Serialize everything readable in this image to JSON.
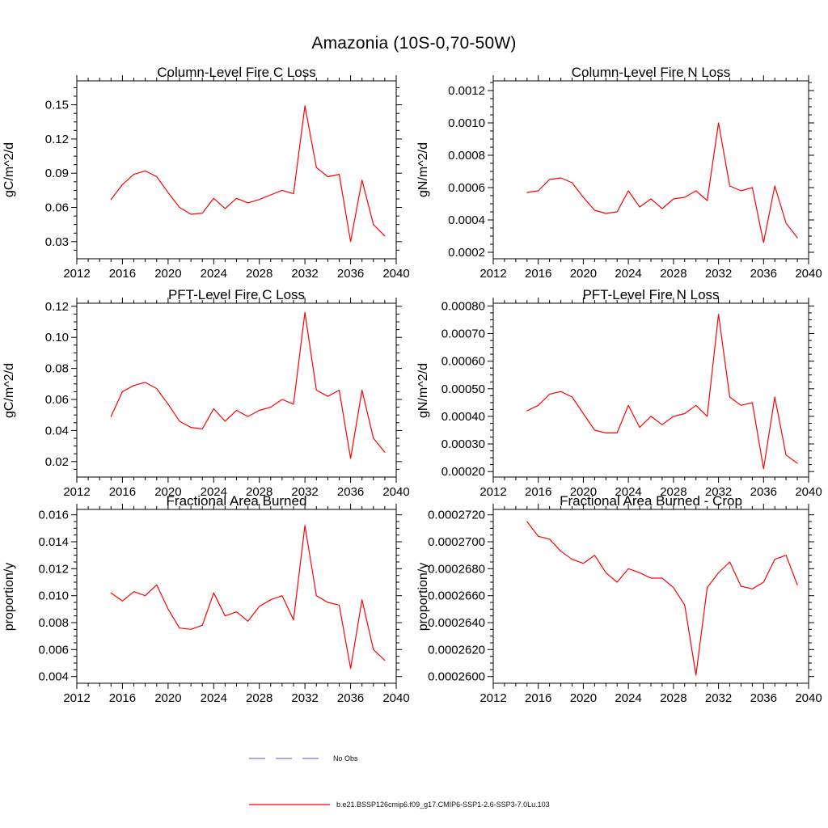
{
  "main_title": "Amazonia (10S-0,70-50W)",
  "legend": {
    "no_obs": {
      "label": "No Obs",
      "color": "#7777c8",
      "style": "dashed"
    },
    "model": {
      "label": "b.e21.BSSP126cmip6.f09_g17.CMIP6-SSP1-2.6-SSP3-7.0Lu.103",
      "color": "#ff0000",
      "style": "solid"
    }
  },
  "chart_data": [
    {
      "type": "line",
      "title": "Column-Level Fire C Loss",
      "ylabel": "gC/m^2/d",
      "xlabel": "",
      "grid": false,
      "xlim": [
        2012,
        2040
      ],
      "ylim": [
        0.015,
        0.171
      ],
      "xticks": [
        2012,
        2016,
        2020,
        2024,
        2028,
        2032,
        2036,
        2040
      ],
      "yticks": [
        0.03,
        0.06,
        0.09,
        0.12,
        0.15
      ],
      "ytick_labels": [
        "0.03",
        "0.06",
        "0.09",
        "0.12",
        "0.15"
      ],
      "x": [
        2015,
        2016,
        2017,
        2018,
        2019,
        2020,
        2021,
        2022,
        2023,
        2024,
        2025,
        2026,
        2027,
        2028,
        2029,
        2030,
        2031,
        2032,
        2033,
        2034,
        2035,
        2036,
        2037,
        2038,
        2039
      ],
      "values": [
        0.067,
        0.08,
        0.089,
        0.092,
        0.087,
        0.073,
        0.06,
        0.054,
        0.055,
        0.068,
        0.059,
        0.068,
        0.064,
        0.067,
        0.071,
        0.075,
        0.072,
        0.149,
        0.095,
        0.087,
        0.089,
        0.03,
        0.084,
        0.045,
        0.035
      ]
    },
    {
      "type": "line",
      "title": "Column-Level Fire N Loss",
      "ylabel": "gN/m^2/d",
      "xlabel": "",
      "grid": false,
      "xlim": [
        2012,
        2040
      ],
      "ylim": [
        0.00016,
        0.00126
      ],
      "xticks": [
        2012,
        2016,
        2020,
        2024,
        2028,
        2032,
        2036,
        2040
      ],
      "yticks": [
        0.0002,
        0.0004,
        0.0006,
        0.0008,
        0.001,
        0.0012
      ],
      "ytick_labels": [
        "0.0002",
        "0.0004",
        "0.0006",
        "0.0008",
        "0.0010",
        "0.0012"
      ],
      "x": [
        2015,
        2016,
        2017,
        2018,
        2019,
        2020,
        2021,
        2022,
        2023,
        2024,
        2025,
        2026,
        2027,
        2028,
        2029,
        2030,
        2031,
        2032,
        2033,
        2034,
        2035,
        2036,
        2037,
        2038,
        2039
      ],
      "values": [
        0.00057,
        0.00058,
        0.00065,
        0.00066,
        0.00063,
        0.00054,
        0.00046,
        0.00044,
        0.00045,
        0.00058,
        0.00048,
        0.00053,
        0.00047,
        0.00053,
        0.00054,
        0.00058,
        0.00052,
        0.001,
        0.00061,
        0.00058,
        0.0006,
        0.00026,
        0.00061,
        0.00038,
        0.00029
      ]
    },
    {
      "type": "line",
      "title": "PFT-Level Fire C Loss",
      "ylabel": "gC/m^2/d",
      "xlabel": "",
      "grid": false,
      "xlim": [
        2012,
        2040
      ],
      "ylim": [
        0.01,
        0.122
      ],
      "xticks": [
        2012,
        2016,
        2020,
        2024,
        2028,
        2032,
        2036,
        2040
      ],
      "yticks": [
        0.02,
        0.04,
        0.06,
        0.08,
        0.1,
        0.12
      ],
      "ytick_labels": [
        "0.02",
        "0.04",
        "0.06",
        "0.08",
        "0.10",
        "0.12"
      ],
      "x": [
        2015,
        2016,
        2017,
        2018,
        2019,
        2020,
        2021,
        2022,
        2023,
        2024,
        2025,
        2026,
        2027,
        2028,
        2029,
        2030,
        2031,
        2032,
        2033,
        2034,
        2035,
        2036,
        2037,
        2038,
        2039
      ],
      "values": [
        0.049,
        0.065,
        0.069,
        0.071,
        0.067,
        0.057,
        0.046,
        0.042,
        0.041,
        0.054,
        0.046,
        0.053,
        0.049,
        0.053,
        0.055,
        0.06,
        0.057,
        0.116,
        0.066,
        0.062,
        0.066,
        0.022,
        0.066,
        0.035,
        0.026
      ]
    },
    {
      "type": "line",
      "title": "PFT-Level Fire N Loss",
      "ylabel": "gN/m^2/d",
      "xlabel": "",
      "grid": false,
      "xlim": [
        2012,
        2040
      ],
      "ylim": [
        0.00018,
        0.00081
      ],
      "xticks": [
        2012,
        2016,
        2020,
        2024,
        2028,
        2032,
        2036,
        2040
      ],
      "yticks": [
        0.0002,
        0.0003,
        0.0004,
        0.0005,
        0.0006,
        0.0007,
        0.0008
      ],
      "ytick_labels": [
        "0.00020",
        "0.00030",
        "0.00040",
        "0.00050",
        "0.00060",
        "0.00070",
        "0.00080"
      ],
      "x": [
        2015,
        2016,
        2017,
        2018,
        2019,
        2020,
        2021,
        2022,
        2023,
        2024,
        2025,
        2026,
        2027,
        2028,
        2029,
        2030,
        2031,
        2032,
        2033,
        2034,
        2035,
        2036,
        2037,
        2038,
        2039
      ],
      "values": [
        0.00042,
        0.00044,
        0.00048,
        0.00049,
        0.00047,
        0.00041,
        0.00035,
        0.00034,
        0.00034,
        0.00044,
        0.00036,
        0.0004,
        0.00037,
        0.0004,
        0.00041,
        0.00044,
        0.0004,
        0.00077,
        0.00047,
        0.00044,
        0.00045,
        0.00021,
        0.00047,
        0.00026,
        0.00023
      ]
    },
    {
      "type": "line",
      "title": "Fractional Area Burned",
      "ylabel": "proportion/y",
      "xlabel": "",
      "grid": false,
      "xlim": [
        2012,
        2040
      ],
      "ylim": [
        0.0035,
        0.0164
      ],
      "xticks": [
        2012,
        2016,
        2020,
        2024,
        2028,
        2032,
        2036,
        2040
      ],
      "yticks": [
        0.004,
        0.006,
        0.008,
        0.01,
        0.012,
        0.014,
        0.016
      ],
      "ytick_labels": [
        "0.004",
        "0.006",
        "0.008",
        "0.010",
        "0.012",
        "0.014",
        "0.016"
      ],
      "x": [
        2015,
        2016,
        2017,
        2018,
        2019,
        2020,
        2021,
        2022,
        2023,
        2024,
        2025,
        2026,
        2027,
        2028,
        2029,
        2030,
        2031,
        2032,
        2033,
        2034,
        2035,
        2036,
        2037,
        2038,
        2039
      ],
      "values": [
        0.0102,
        0.0096,
        0.0103,
        0.01,
        0.0108,
        0.009,
        0.0076,
        0.0075,
        0.0078,
        0.0102,
        0.0085,
        0.0088,
        0.0081,
        0.0092,
        0.0097,
        0.01,
        0.0082,
        0.0152,
        0.01,
        0.0095,
        0.0093,
        0.0046,
        0.0097,
        0.006,
        0.0052
      ]
    },
    {
      "type": "line",
      "title": "Fractional Area Burned - Crop",
      "ylabel": "proportion/y",
      "xlabel": "",
      "grid": false,
      "xlim": [
        2012,
        2040
      ],
      "ylim": [
        0.0002595,
        0.0002724
      ],
      "xticks": [
        2012,
        2016,
        2020,
        2024,
        2028,
        2032,
        2036,
        2040
      ],
      "yticks": [
        0.00026,
        0.000262,
        0.000264,
        0.000266,
        0.000268,
        0.00027,
        0.000272
      ],
      "ytick_labels": [
        "0.0002600",
        "0.0002620",
        "0.0002640",
        "0.0002660",
        "0.0002680",
        "0.0002700",
        "0.0002720"
      ],
      "x": [
        2015,
        2016,
        2017,
        2018,
        2019,
        2020,
        2021,
        2022,
        2023,
        2024,
        2025,
        2026,
        2027,
        2028,
        2029,
        2030,
        2031,
        2032,
        2033,
        2034,
        2035,
        2036,
        2037,
        2038,
        2039
      ],
      "values": [
        0.0002715,
        0.0002704,
        0.0002702,
        0.0002693,
        0.0002687,
        0.0002684,
        0.000269,
        0.0002677,
        0.000267,
        0.000268,
        0.0002677,
        0.0002673,
        0.0002673,
        0.0002666,
        0.0002653,
        0.0002601,
        0.0002666,
        0.0002677,
        0.0002685,
        0.0002667,
        0.0002665,
        0.000267,
        0.0002687,
        0.000269,
        0.0002668
      ]
    }
  ]
}
